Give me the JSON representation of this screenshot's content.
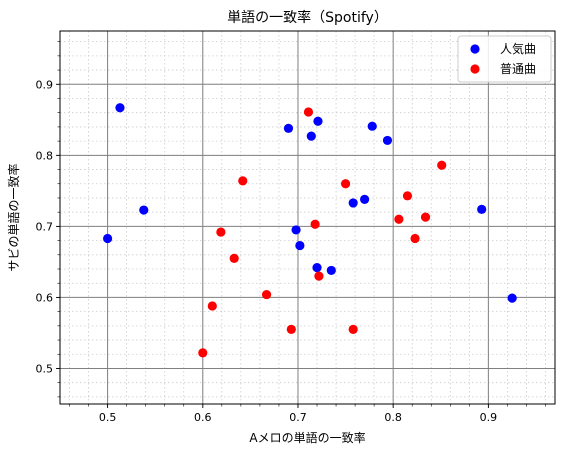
{
  "chart_data": {
    "type": "scatter",
    "title": "単語の一致率（Spotify）",
    "xlabel": "Aメロの単語の一致率",
    "ylabel": "サビの単語の一致率",
    "xlim": [
      0.45,
      0.97
    ],
    "ylim": [
      0.45,
      0.975
    ],
    "x_ticks": [
      0.5,
      0.6,
      0.7,
      0.8,
      0.9
    ],
    "y_ticks": [
      0.5,
      0.6,
      0.7,
      0.8,
      0.9
    ],
    "x_tick_labels": [
      "0.5",
      "0.6",
      "0.7",
      "0.8",
      "0.9"
    ],
    "y_tick_labels": [
      "0.5",
      "0.6",
      "0.7",
      "0.8",
      "0.9"
    ],
    "grid": {
      "major": true,
      "minor": true,
      "minor_style": "dotted"
    },
    "legend": {
      "position": "top-right"
    },
    "series": [
      {
        "name": "人気曲",
        "color": "#0000ff",
        "points": [
          [
            0.5,
            0.683
          ],
          [
            0.513,
            0.867
          ],
          [
            0.538,
            0.723
          ],
          [
            0.69,
            0.838
          ],
          [
            0.698,
            0.695
          ],
          [
            0.702,
            0.673
          ],
          [
            0.714,
            0.827
          ],
          [
            0.72,
            0.642
          ],
          [
            0.721,
            0.848
          ],
          [
            0.735,
            0.638
          ],
          [
            0.758,
            0.733
          ],
          [
            0.77,
            0.738
          ],
          [
            0.778,
            0.841
          ],
          [
            0.794,
            0.821
          ],
          [
            0.893,
            0.724
          ],
          [
            0.925,
            0.599
          ]
        ]
      },
      {
        "name": "普通曲",
        "color": "#ff0000",
        "points": [
          [
            0.6,
            0.522
          ],
          [
            0.61,
            0.588
          ],
          [
            0.619,
            0.692
          ],
          [
            0.633,
            0.655
          ],
          [
            0.642,
            0.764
          ],
          [
            0.667,
            0.604
          ],
          [
            0.693,
            0.555
          ],
          [
            0.711,
            0.861
          ],
          [
            0.718,
            0.703
          ],
          [
            0.722,
            0.63
          ],
          [
            0.75,
            0.76
          ],
          [
            0.758,
            0.555
          ],
          [
            0.806,
            0.71
          ],
          [
            0.815,
            0.743
          ],
          [
            0.823,
            0.683
          ],
          [
            0.834,
            0.713
          ],
          [
            0.851,
            0.786
          ]
        ]
      }
    ]
  }
}
